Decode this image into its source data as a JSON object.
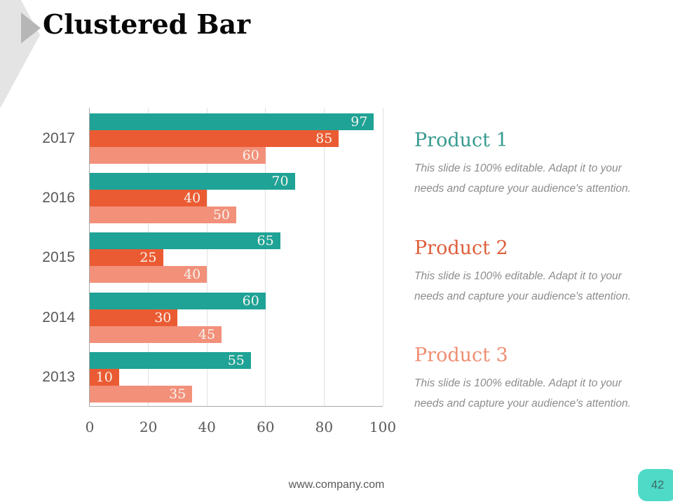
{
  "slide": {
    "title": "Clustered Bar",
    "footer_url": "www.company.com",
    "page_number": "42"
  },
  "chart_data": {
    "type": "bar",
    "orientation": "horizontal",
    "title": "",
    "xlabel": "",
    "ylabel": "",
    "categories": [
      "2017",
      "2016",
      "2015",
      "2014",
      "2013"
    ],
    "series": [
      {
        "name": "Product 1",
        "color": "#1fa396",
        "values": [
          97,
          70,
          65,
          60,
          55
        ]
      },
      {
        "name": "Product 2",
        "color": "#eb5b33",
        "values": [
          85,
          40,
          25,
          30,
          10
        ]
      },
      {
        "name": "Product 3",
        "color": "#f2907a",
        "values": [
          60,
          50,
          40,
          45,
          35
        ]
      }
    ],
    "xlim": [
      0,
      100
    ],
    "xticks": [
      0,
      20,
      40,
      60,
      80,
      100
    ],
    "grid": "vertical",
    "value_labels": "inside-end",
    "value_label_color": "#f7f4ee",
    "axis_text_color": "#595959"
  },
  "products": [
    {
      "title": "Product 1",
      "color": "#379b8f",
      "description_lines": [
        "This slide is 100% editable. Adapt it to your",
        "needs and capture your audience's attention."
      ]
    },
    {
      "title": "Product 2",
      "color": "#de5f3b",
      "description_lines": [
        "This slide is 100% editable. Adapt it to your",
        "needs and capture your audience's attention."
      ]
    },
    {
      "title": "Product 3",
      "color": "#ee8e72",
      "description_lines": [
        "This slide is 100% editable. Adapt it to your",
        "needs and capture your audience's attention."
      ]
    }
  ],
  "badge": {
    "background": "#4fd9c7",
    "text_color": "#3e6b68"
  }
}
